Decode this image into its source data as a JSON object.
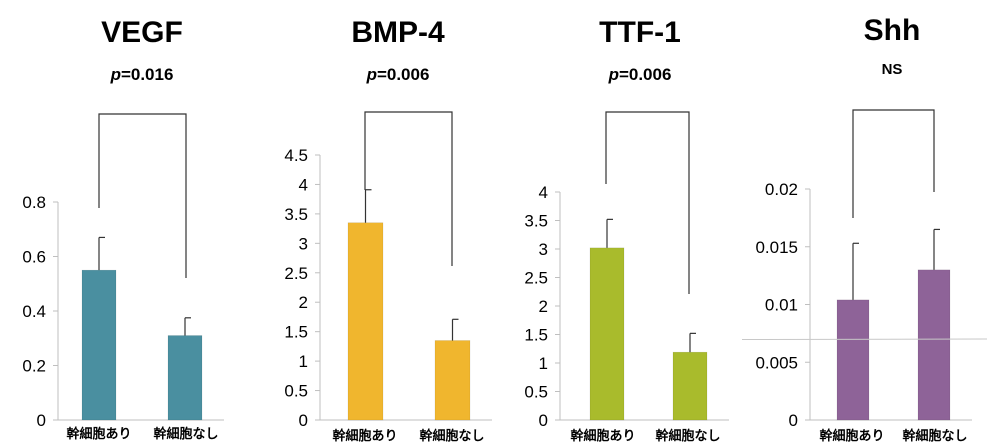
{
  "chart_data": [
    {
      "type": "bar",
      "title": "VEGF",
      "subtitle": "p=0.016",
      "p_prefix": "p",
      "p_suffix": "=0.016",
      "categories": [
        "幹細胞あり",
        "幹細胞なし"
      ],
      "values": [
        0.55,
        0.31
      ],
      "error": [
        0.12,
        0.065
      ],
      "color": "#4a8fa0",
      "ylim": [
        0,
        0.8
      ],
      "yticks": [
        0,
        0.2,
        0.4,
        0.6,
        0.8
      ],
      "ytick_labels": [
        "0",
        "0.2",
        "0.4",
        "0.6",
        "0.8"
      ],
      "grid": false,
      "legend": "none"
    },
    {
      "type": "bar",
      "title": "BMP-4",
      "subtitle": "p=0.006",
      "p_prefix": "p",
      "p_suffix": "=0.006",
      "categories": [
        "幹細胞あり",
        "幹細胞なし"
      ],
      "values": [
        3.35,
        1.35
      ],
      "error": [
        0.56,
        0.36
      ],
      "color": "#f0b62e",
      "ylim": [
        0,
        4.5
      ],
      "yticks": [
        0,
        0.5,
        1,
        1.5,
        2,
        2.5,
        3,
        3.5,
        4,
        4.5
      ],
      "ytick_labels": [
        "0",
        "0.5",
        "1",
        "1.5",
        "2",
        "2.5",
        "3",
        "3.5",
        "4",
        "4.5"
      ],
      "grid": false,
      "legend": "none"
    },
    {
      "type": "bar",
      "title": "TTF-1",
      "subtitle": "p=0.006",
      "p_prefix": "p",
      "p_suffix": "=0.006",
      "categories": [
        "幹細胞あり",
        "幹細胞なし"
      ],
      "values": [
        3.02,
        1.19
      ],
      "error": [
        0.5,
        0.33
      ],
      "color": "#a9bb2c",
      "ylim": [
        0,
        4
      ],
      "yticks": [
        0,
        0.5,
        1,
        1.5,
        2,
        2.5,
        3,
        3.5,
        4
      ],
      "ytick_labels": [
        "0",
        "0.5",
        "1",
        "1.5",
        "2",
        "2.5",
        "3",
        "3.5",
        "4"
      ],
      "grid": false,
      "legend": "none"
    },
    {
      "type": "bar",
      "title": "Shh",
      "subtitle": "NS",
      "categories": [
        "幹細胞あり",
        "幹細胞なし"
      ],
      "values": [
        0.0104,
        0.013
      ],
      "error": [
        0.0049,
        0.0035
      ],
      "color": "#8e6398",
      "ylim": [
        0,
        0.02
      ],
      "yticks": [
        0,
        0.005,
        0.01,
        0.015,
        0.02
      ],
      "ytick_labels": [
        "0",
        "0.005",
        "0.01",
        "0.015",
        "0.02"
      ],
      "grid": false,
      "legend": "none"
    }
  ]
}
